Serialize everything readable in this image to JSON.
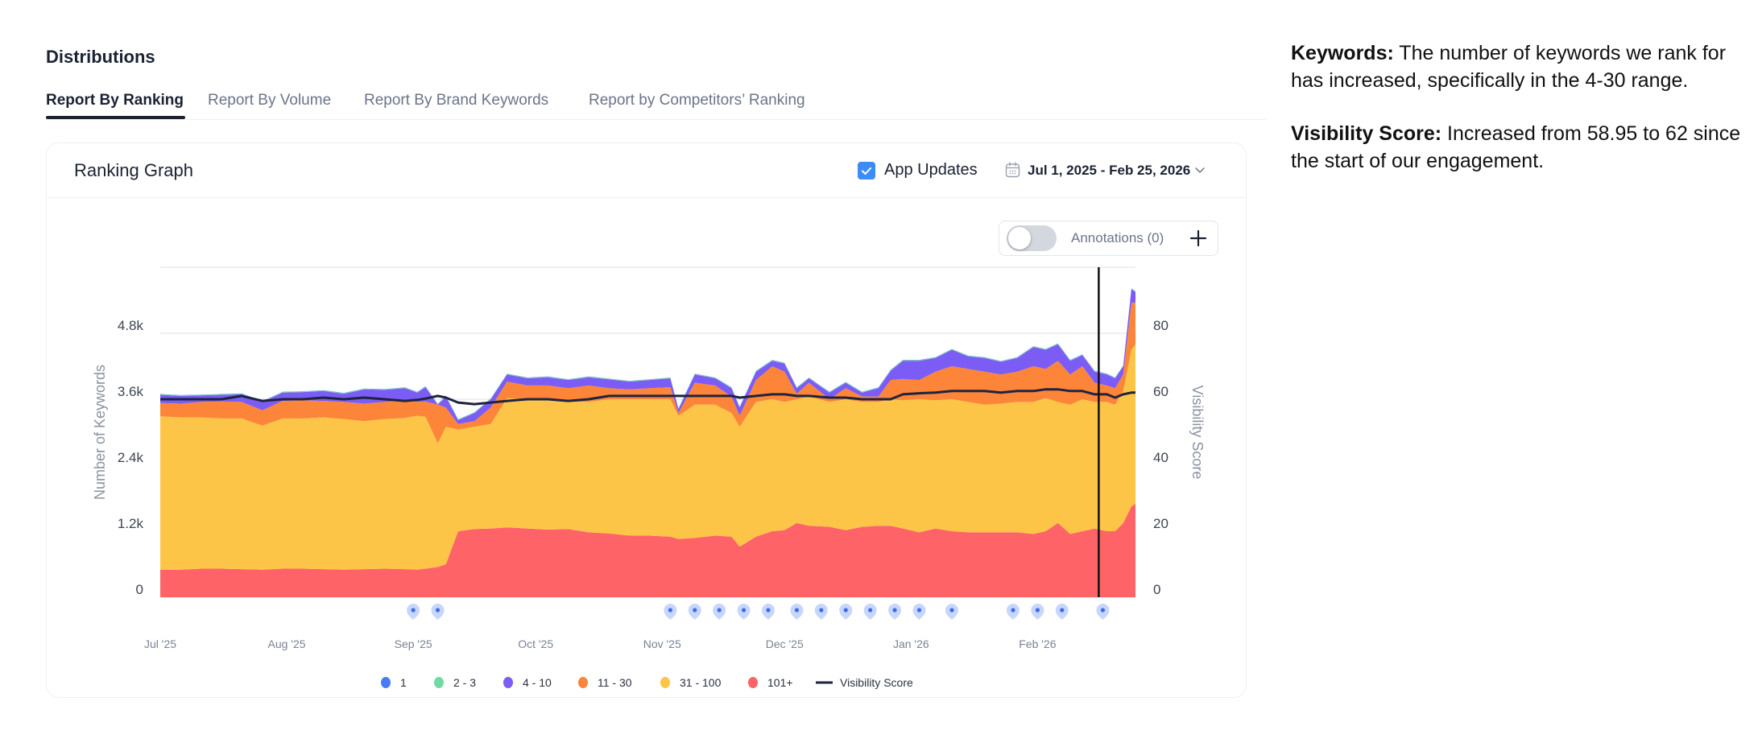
{
  "section": {
    "title": "Distributions"
  },
  "tabs": [
    {
      "label": "Report By Ranking",
      "active": true
    },
    {
      "label": "Report By Volume",
      "active": false
    },
    {
      "label": "Report By Brand Keywords",
      "active": false
    },
    {
      "label": "Report by Competitors’ Ranking",
      "active": false
    }
  ],
  "card": {
    "title": "Ranking Graph",
    "app_updates": {
      "label": "App Updates",
      "checked": true,
      "icon": "checkbox-checked-icon"
    },
    "date_range": {
      "label": "Jul 1, 2025 - Feb 25, 2026",
      "icon": "calendar-icon",
      "chevron": "chevron-down-icon"
    },
    "annotations": {
      "label": "Annotations (0)",
      "enabled": false,
      "add_icon": "plus-icon"
    }
  },
  "notes": {
    "keywords": {
      "heading": "Keywords:",
      "text": " The number of keywords we rank for has increased, specifically in the 4-30 range."
    },
    "visibility": {
      "heading": "Visibility Score:",
      "text": " Increased from 58.95 to 62 since the start of our engagement."
    }
  },
  "chart_data": {
    "type": "area",
    "stacked": true,
    "title": "Ranking Graph",
    "xlabel": "",
    "ylabel": "Number of Keywords",
    "y2label": "Visibility Score",
    "ylim": [
      0,
      6000
    ],
    "y2lim": [
      0,
      100
    ],
    "yticks": [
      "0",
      "1.2k",
      "2.4k",
      "3.6k",
      "4.8k"
    ],
    "ytick_values": [
      0,
      1200,
      2400,
      3600,
      4800
    ],
    "y2ticks": [
      "0",
      "20",
      "40",
      "60",
      "80"
    ],
    "y2tick_values": [
      0,
      20,
      40,
      60,
      80
    ],
    "xlim": [
      "2025-07-01",
      "2026-02-25"
    ],
    "xticks": [
      {
        "label": "Jul '25",
        "date": "2025-07-01"
      },
      {
        "label": "Aug '25",
        "date": "2025-08-01"
      },
      {
        "label": "Sep '25",
        "date": "2025-09-01"
      },
      {
        "label": "Oct '25",
        "date": "2025-10-01"
      },
      {
        "label": "Nov '25",
        "date": "2025-11-01"
      },
      {
        "label": "Dec '25",
        "date": "2025-12-01"
      },
      {
        "label": "Jan '26",
        "date": "2026-01-01"
      },
      {
        "label": "Feb '26",
        "date": "2026-02-01"
      }
    ],
    "grid": true,
    "legend_position": "bottom-center",
    "colors": {
      "1": "#4a7bf7",
      "2-3": "#6fdba0",
      "4-10": "#7b5cf5",
      "11-30": "#fd8539",
      "31-100": "#fdc547",
      "101+": "#fe6467",
      "visibility": "#1e2440",
      "annotation_pin": "#c9d6fb",
      "annotation_dot": "#3b6cf0",
      "cursor": "#111111"
    },
    "legend": [
      "1",
      "2 - 3",
      "4 - 10",
      "11 - 30",
      "31 - 100",
      "101+",
      "Visibility Score"
    ],
    "x": [
      "2025-07-01",
      "2025-07-06",
      "2025-07-11",
      "2025-07-16",
      "2025-07-21",
      "2025-07-26",
      "2025-07-31",
      "2025-08-05",
      "2025-08-10",
      "2025-08-15",
      "2025-08-20",
      "2025-08-25",
      "2025-08-30",
      "2025-09-02",
      "2025-09-04",
      "2025-09-07",
      "2025-09-09",
      "2025-09-12",
      "2025-09-16",
      "2025-09-20",
      "2025-09-24",
      "2025-09-29",
      "2025-10-04",
      "2025-10-09",
      "2025-10-14",
      "2025-10-19",
      "2025-10-24",
      "2025-10-29",
      "2025-11-03",
      "2025-11-05",
      "2025-11-09",
      "2025-11-14",
      "2025-11-18",
      "2025-11-20",
      "2025-11-24",
      "2025-11-28",
      "2025-12-01",
      "2025-12-04",
      "2025-12-07",
      "2025-12-12",
      "2025-12-16",
      "2025-12-20",
      "2025-12-24",
      "2025-12-27",
      "2025-12-30",
      "2026-01-03",
      "2026-01-07",
      "2026-01-11",
      "2026-01-15",
      "2026-01-19",
      "2026-01-23",
      "2026-01-27",
      "2026-01-31",
      "2026-02-03",
      "2026-02-06",
      "2026-02-09",
      "2026-02-12",
      "2026-02-15",
      "2026-02-18",
      "2026-02-20",
      "2026-02-22",
      "2026-02-24",
      "2026-02-25"
    ],
    "series": [
      {
        "name": "101+",
        "values": [
          500,
          500,
          520,
          520,
          510,
          500,
          520,
          520,
          510,
          500,
          510,
          520,
          510,
          500,
          520,
          550,
          600,
          1200,
          1240,
          1250,
          1270,
          1250,
          1230,
          1240,
          1180,
          1160,
          1120,
          1120,
          1100,
          1060,
          1080,
          1120,
          1100,
          920,
          1100,
          1200,
          1220,
          1350,
          1300,
          1280,
          1220,
          1280,
          1300,
          1300,
          1250,
          1180,
          1250,
          1200,
          1180,
          1180,
          1180,
          1180,
          1150,
          1200,
          1350,
          1150,
          1200,
          1250,
          1200,
          1200,
          1350,
          1650,
          1700
        ]
      },
      {
        "name": "31 - 100",
        "values": [
          2790,
          2770,
          2750,
          2730,
          2740,
          2620,
          2730,
          2730,
          2760,
          2740,
          2690,
          2720,
          2750,
          2800,
          2760,
          2250,
          2500,
          1850,
          1860,
          1900,
          2350,
          2350,
          2350,
          2310,
          2370,
          2440,
          2480,
          2480,
          2500,
          2240,
          2420,
          2380,
          2250,
          2180,
          2450,
          2400,
          2330,
          2250,
          2350,
          2270,
          2380,
          2270,
          2250,
          2300,
          2330,
          2420,
          2330,
          2400,
          2370,
          2320,
          2340,
          2370,
          2400,
          2420,
          2200,
          2350,
          2400,
          2300,
          2350,
          2300,
          2400,
          2850,
          2900
        ]
      },
      {
        "name": "11 - 30",
        "values": [
          240,
          250,
          280,
          310,
          300,
          280,
          320,
          330,
          300,
          310,
          320,
          310,
          320,
          250,
          280,
          700,
          350,
          100,
          100,
          300,
          300,
          250,
          270,
          250,
          300,
          200,
          180,
          200,
          220,
          50,
          400,
          350,
          300,
          200,
          400,
          600,
          550,
          100,
          250,
          50,
          200,
          100,
          100,
          350,
          390,
          350,
          520,
          600,
          600,
          600,
          530,
          550,
          650,
          530,
          750,
          550,
          600,
          350,
          300,
          300,
          300,
          850,
          760
        ]
      },
      {
        "name": "4 - 10",
        "values": [
          150,
          140,
          120,
          120,
          140,
          150,
          150,
          150,
          180,
          150,
          260,
          220,
          220,
          170,
          260,
          0,
          200,
          70,
          150,
          150,
          130,
          130,
          150,
          150,
          150,
          160,
          140,
          150,
          160,
          70,
          150,
          130,
          150,
          150,
          150,
          100,
          150,
          100,
          80,
          120,
          100,
          70,
          150,
          170,
          330,
          350,
          250,
          300,
          230,
          250,
          230,
          250,
          350,
          350,
          300,
          250,
          200,
          200,
          200,
          180,
          150,
          250,
          190
        ]
      },
      {
        "name": "2 - 3",
        "values": [
          10,
          10,
          10,
          10,
          10,
          10,
          10,
          10,
          10,
          10,
          10,
          10,
          10,
          10,
          10,
          10,
          10,
          10,
          10,
          10,
          10,
          10,
          10,
          10,
          10,
          10,
          10,
          10,
          10,
          10,
          10,
          10,
          10,
          10,
          10,
          10,
          10,
          10,
          10,
          10,
          10,
          10,
          10,
          10,
          10,
          10,
          10,
          10,
          10,
          10,
          10,
          10,
          10,
          10,
          10,
          10,
          10,
          10,
          10,
          10,
          10,
          10,
          10
        ]
      },
      {
        "name": "1",
        "values": [
          5,
          5,
          5,
          5,
          5,
          5,
          5,
          5,
          5,
          5,
          5,
          5,
          5,
          5,
          5,
          5,
          5,
          5,
          5,
          5,
          5,
          5,
          5,
          5,
          5,
          5,
          5,
          5,
          5,
          5,
          5,
          5,
          5,
          5,
          5,
          5,
          5,
          5,
          5,
          5,
          5,
          5,
          5,
          5,
          5,
          5,
          5,
          5,
          5,
          5,
          5,
          5,
          5,
          5,
          5,
          5,
          5,
          5,
          5,
          5,
          5,
          5,
          5
        ]
      }
    ],
    "visibility_score": {
      "name": "Visibility Score",
      "axis": "right",
      "values": [
        60,
        60,
        60,
        60,
        61,
        59.5,
        60,
        60,
        60.5,
        60,
        60.5,
        60,
        59.5,
        59.8,
        60.2,
        61,
        60.5,
        59,
        58.5,
        59,
        59.5,
        60,
        60,
        59.5,
        60,
        61,
        61,
        61,
        61,
        61,
        61,
        61,
        61,
        60.5,
        61,
        61.5,
        61.5,
        61,
        61,
        60.5,
        60.5,
        60,
        60,
        60,
        61.5,
        61.8,
        62,
        62.5,
        62.5,
        62.5,
        62,
        62.5,
        62.5,
        63,
        63,
        62.5,
        62.5,
        61.5,
        61.5,
        60.5,
        61.5,
        62,
        62
      ]
    },
    "annotations": [
      "2025-09-01",
      "2025-09-07",
      "2025-11-03",
      "2025-11-09",
      "2025-11-15",
      "2025-11-21",
      "2025-11-27",
      "2025-12-04",
      "2025-12-10",
      "2025-12-16",
      "2025-12-22",
      "2025-12-28",
      "2026-01-03",
      "2026-01-11",
      "2026-01-26",
      "2026-02-01",
      "2026-02-07",
      "2026-02-17"
    ],
    "cursor_date": "2026-02-16"
  }
}
